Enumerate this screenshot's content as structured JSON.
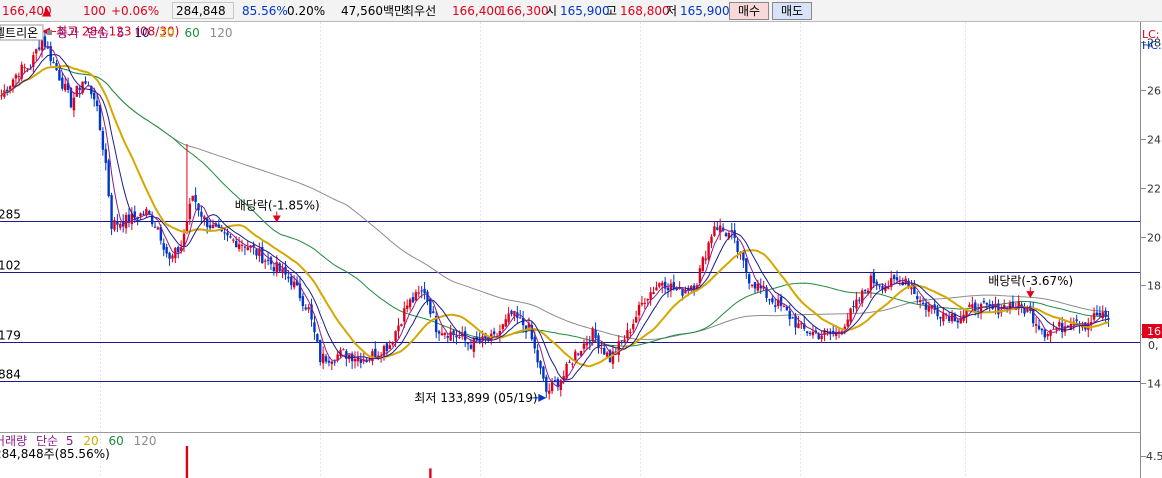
{
  "topbar": {
    "price": "166,400",
    "change_arrow": "▲",
    "change": "100",
    "change_pct": "+0.06%",
    "volume": "284,848",
    "volume_ratio": "85.56%",
    "turnover": "0.20%",
    "amount": "47,560백만",
    "best_label": "최우선",
    "best_ask": "166,400",
    "best_bid": "166,300",
    "open_label": "시",
    "open": "165,900",
    "high_label": "고",
    "high": "168,800",
    "low_label": "저",
    "low": "165,900",
    "buy_button": "매수",
    "sell_button": "매도"
  },
  "legend": {
    "stock_name": "셀트리온",
    "menu_icon": "small-square-icon",
    "close_label": "종가",
    "ma_type": "단순",
    "periods": [
      "5",
      "10",
      "20",
      "60",
      "120"
    ],
    "period_colors": [
      "#8b1c8b",
      "#1c1c8b",
      "#d4a800",
      "#1f8b3c",
      "#8c8c8c"
    ]
  },
  "volume_legend": {
    "title": "거래량",
    "ma_type": "단순",
    "periods": [
      "5",
      "20",
      "60",
      "120"
    ],
    "value": "284,848주(85.56%)"
  },
  "right_axis": {
    "top_labels": [
      "LC:",
      "HC:"
    ],
    "volume_tick": "4.5"
  },
  "colors": {
    "up": "#e0001b",
    "down": "#0037c8",
    "ma5": "#8b1c8b",
    "ma10": "#1c1c8b",
    "ma20": "#d4a800",
    "ma60": "#1f8b3c",
    "ma120": "#8c8c8c",
    "hline": "#1a1a8a"
  },
  "chart_data": {
    "type": "candlestick",
    "y_ticks": [
      {
        "value": 280000,
        "label": "28"
      },
      {
        "value": 260000,
        "label": "26"
      },
      {
        "value": 240000,
        "label": "24"
      },
      {
        "value": 220000,
        "label": "22"
      },
      {
        "value": 200000,
        "label": "20"
      },
      {
        "value": 180000,
        "label": "18"
      },
      {
        "value": 160000,
        "label": "16"
      },
      {
        "value": 140000,
        "label": "14"
      }
    ],
    "ylim": [
      124000,
      288000
    ],
    "current_price_label": "16",
    "current_price_sub": "0,",
    "horizontal_lines": [
      {
        "value": 206300,
        "label": "285"
      },
      {
        "value": 185500,
        "label": "102"
      },
      {
        "value": 156800,
        "label": "179"
      },
      {
        "value": 140900,
        "label": "884"
      }
    ],
    "annotations": [
      {
        "text": "배당락(-1.85%)",
        "index": 95,
        "price": 207000,
        "color": "#e0001b"
      },
      {
        "text": "배당락(-3.67%)",
        "index": 355,
        "price": 176000,
        "color": "#e0001b"
      }
    ],
    "high_marker": {
      "text": "최고 284,123 (08/30)",
      "index": 14,
      "value": 284123
    },
    "low_marker": {
      "text": "최저 133,899 (05/19)",
      "index": 188,
      "value": 133899
    },
    "price_keyframes": [
      [
        0,
        258000
      ],
      [
        6,
        268000
      ],
      [
        10,
        270000
      ],
      [
        14,
        282000
      ],
      [
        18,
        271000
      ],
      [
        24,
        255000
      ],
      [
        28,
        264000
      ],
      [
        32,
        258000
      ],
      [
        36,
        230000
      ],
      [
        38,
        205000
      ],
      [
        44,
        207000
      ],
      [
        50,
        210000
      ],
      [
        54,
        204000
      ],
      [
        58,
        190000
      ],
      [
        62,
        196000
      ],
      [
        66,
        217000
      ],
      [
        70,
        207000
      ],
      [
        76,
        200000
      ],
      [
        84,
        197000
      ],
      [
        92,
        190000
      ],
      [
        100,
        182000
      ],
      [
        106,
        170000
      ],
      [
        110,
        150000
      ],
      [
        118,
        152000
      ],
      [
        126,
        150000
      ],
      [
        134,
        156000
      ],
      [
        140,
        172000
      ],
      [
        146,
        178000
      ],
      [
        150,
        163000
      ],
      [
        156,
        160000
      ],
      [
        162,
        156000
      ],
      [
        170,
        158000
      ],
      [
        176,
        168000
      ],
      [
        182,
        162000
      ],
      [
        188,
        136000
      ],
      [
        194,
        143000
      ],
      [
        198,
        152000
      ],
      [
        204,
        160000
      ],
      [
        210,
        150000
      ],
      [
        216,
        160000
      ],
      [
        222,
        175000
      ],
      [
        228,
        182000
      ],
      [
        234,
        177000
      ],
      [
        240,
        182000
      ],
      [
        246,
        205000
      ],
      [
        252,
        200000
      ],
      [
        258,
        183000
      ],
      [
        264,
        176000
      ],
      [
        270,
        170000
      ],
      [
        276,
        162000
      ],
      [
        282,
        160000
      ],
      [
        288,
        160000
      ],
      [
        294,
        170000
      ],
      [
        300,
        182000
      ],
      [
        306,
        180000
      ],
      [
        312,
        183000
      ],
      [
        318,
        172000
      ],
      [
        324,
        169000
      ],
      [
        330,
        167000
      ],
      [
        336,
        171000
      ],
      [
        342,
        170000
      ],
      [
        348,
        172000
      ],
      [
        354,
        170000
      ],
      [
        360,
        161000
      ],
      [
        366,
        163000
      ],
      [
        370,
        167000
      ],
      [
        374,
        164000
      ],
      [
        378,
        168000
      ],
      [
        382,
        166000
      ]
    ],
    "volume_spikes": [
      {
        "index": 64,
        "value": 1.0
      },
      {
        "index": 148,
        "value": 0.3
      }
    ]
  }
}
